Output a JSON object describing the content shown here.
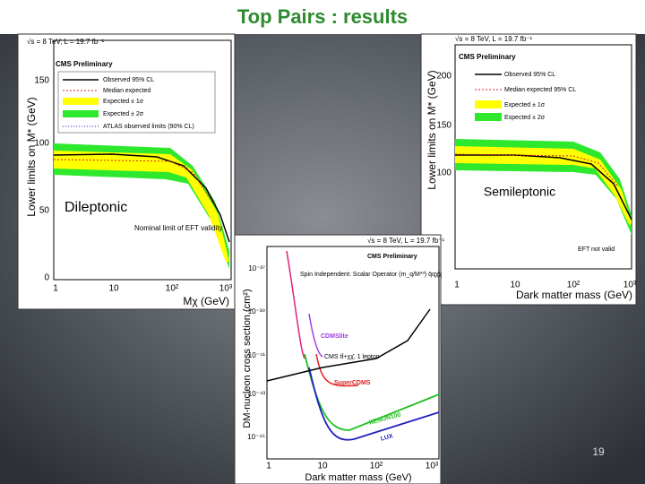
{
  "title": "Top Pairs : results",
  "page_number": "19",
  "dileptonic_plot": {
    "header": "√s = 8 TeV, L = 19.7 fb⁻¹",
    "label": "CMS Preliminary",
    "y_axis": "Lower limits on M* (GeV)",
    "x_axis": "Mχ (GeV)",
    "y_ticks": [
      "150",
      "100",
      "50",
      "0"
    ],
    "x_ticks": [
      "1",
      "10",
      "10²",
      "10³"
    ],
    "legend": [
      "Observed 95% CL",
      "Median expected",
      "Expected ± 1σ",
      "Expected ± 2σ",
      "ATLAS observed limits (90% CL)"
    ],
    "annotation": "Dileptonic",
    "note": "Nominal limit of EFT validity"
  },
  "semileptonic_plot": {
    "header": "√s = 8 TeV, L = 19.7 fb⁻¹",
    "label": "CMS Preliminary",
    "y_axis": "Lower limits on M* (GeV)",
    "x_axis": "Dark matter mass (GeV)",
    "y_ticks": [
      "200",
      "150",
      "100"
    ],
    "x_ticks": [
      "1",
      "10",
      "10²",
      "10³"
    ],
    "legend": [
      "Observed 95% CL",
      "Median expected 95% CL",
      "Expected ± 1σ",
      "Expected ± 2σ"
    ],
    "annotation": "Semileptonic",
    "note": "EFT not valid"
  },
  "cross_section_plot": {
    "header": "√s = 8 TeV, L = 19.7 fb⁻¹",
    "label": "CMS Preliminary",
    "operator": "Spin Independent: Scalar Operator (m_q/M*³) q̄qχ̄χ",
    "y_axis": "DM-nucleon cross section (cm²)",
    "x_axis": "Dark matter mass (GeV)",
    "y_ticks": [
      "10⁻³⁷",
      "10⁻³⁹",
      "10⁻⁴¹",
      "10⁻⁴³",
      "10⁻⁴⁵"
    ],
    "x_ticks": [
      "1",
      "10",
      "10²",
      "10³"
    ],
    "curves": [
      "CDMSlite",
      "CMS tt̄+χχ̄, 1 lepton",
      "SuperCDMS",
      "XENON100",
      "LUX"
    ]
  }
}
